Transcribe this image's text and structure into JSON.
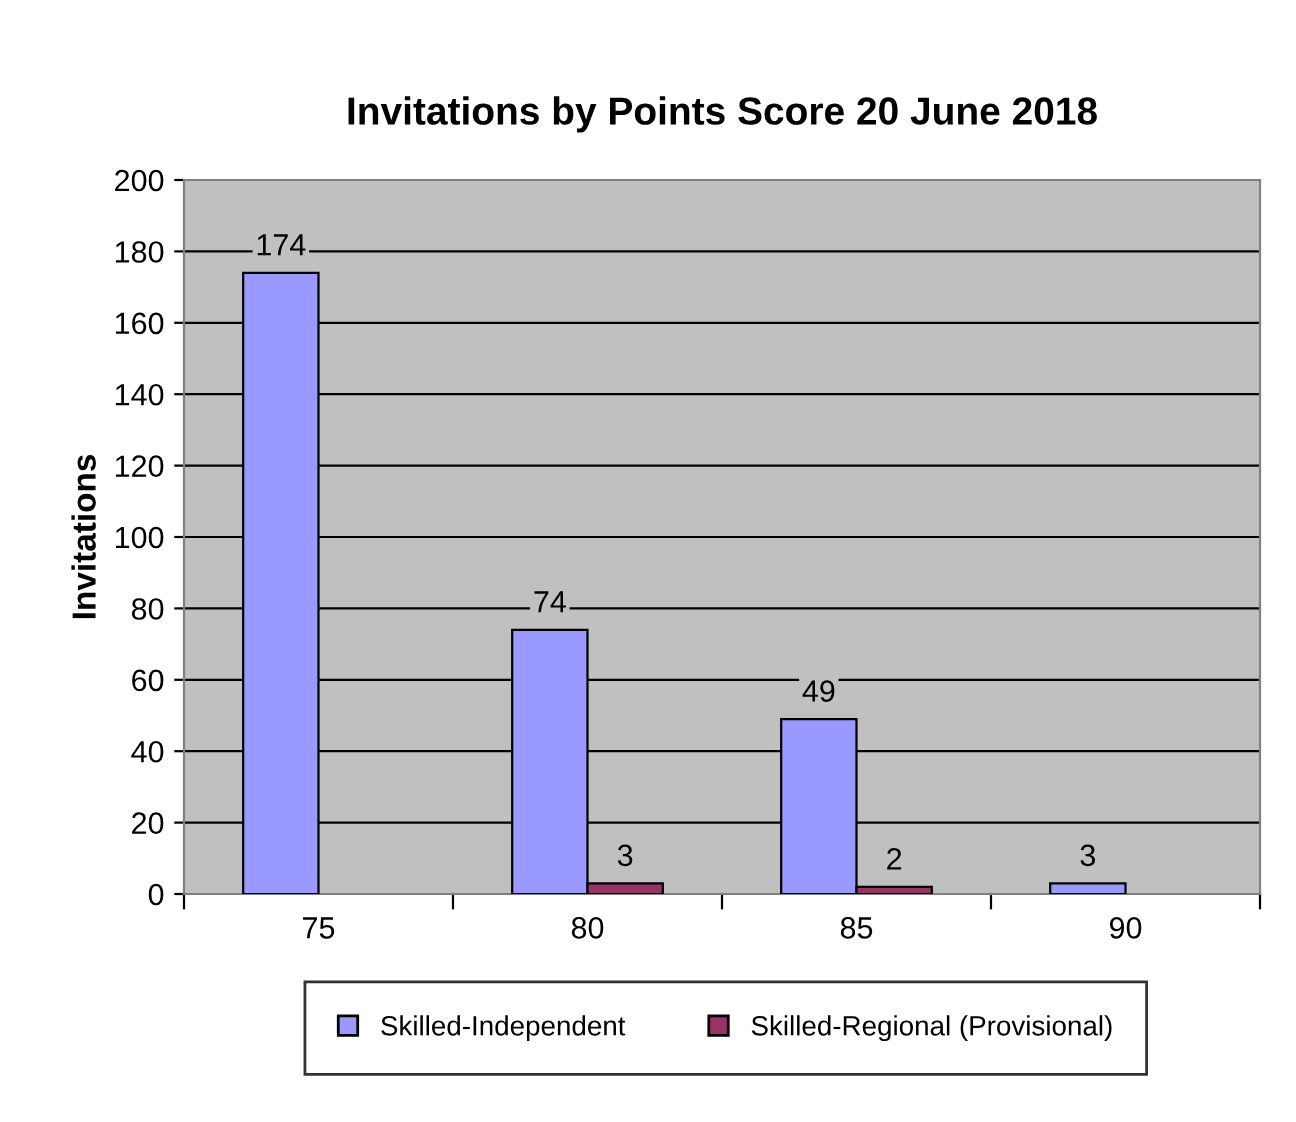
{
  "chart_data": {
    "type": "bar",
    "title": "Invitations by Points Score 20 June 2018",
    "ylabel": "Invitations",
    "categories": [
      "75",
      "80",
      "85",
      "90"
    ],
    "series": [
      {
        "name": "Skilled-Independent",
        "color": "#9999ff",
        "values": [
          174,
          74,
          49,
          3
        ]
      },
      {
        "name": "Skilled-Regional (Provisional)",
        "color": "#993366",
        "values": [
          null,
          3,
          2,
          null
        ]
      }
    ],
    "ylim": [
      0,
      200
    ],
    "yticks": [
      0,
      20,
      40,
      60,
      80,
      100,
      120,
      140,
      160,
      180,
      200
    ],
    "grid": "y",
    "legend": "bottom",
    "data_labels": true
  }
}
